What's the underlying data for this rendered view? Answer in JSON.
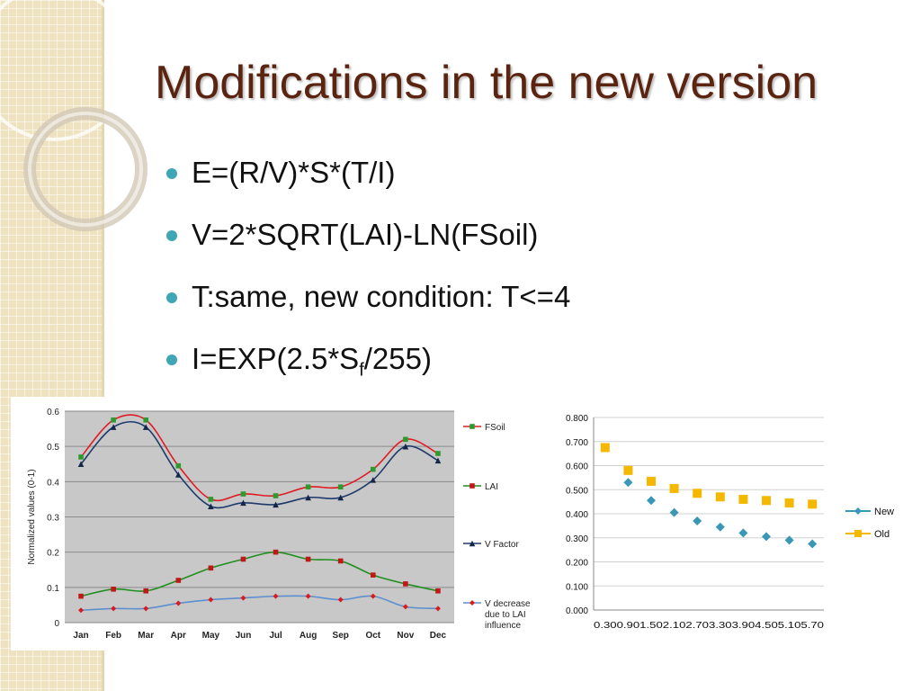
{
  "slide": {
    "title": "Modifications in the new version",
    "bullets": [
      {
        "text": "E=(R/V)*S*(T/I)"
      },
      {
        "text": "V=2*SQRT(LAI)-LN(FSoil)"
      },
      {
        "text": "T:same, new condition: T<=4"
      },
      {
        "text_before": "I=EXP(2.5*S",
        "subscript": "f",
        "text_after": "/255)"
      }
    ],
    "colors": {
      "title": "#5b2410",
      "bullet": "#3ea6b4",
      "sidebar": "#efe2c1"
    }
  },
  "chart_data": [
    {
      "type": "line",
      "categories": [
        "Jan",
        "Feb",
        "Mar",
        "Apr",
        "May",
        "Jun",
        "Jul",
        "Aug",
        "Sep",
        "Oct",
        "Nov",
        "Dec"
      ],
      "ylabel": "Normalized values (0-1)",
      "ylim": [
        0,
        0.6
      ],
      "yticks": [
        "0",
        "0.1",
        "0.2",
        "0.3",
        "0.4",
        "0.5",
        "0.6"
      ],
      "grid": true,
      "legend": "right",
      "series": [
        {
          "name": "FSoil",
          "color": "#e01b24",
          "marker": "square-green",
          "values": [
            0.47,
            0.575,
            0.575,
            0.445,
            0.35,
            0.365,
            0.36,
            0.385,
            0.385,
            0.435,
            0.52,
            0.48
          ]
        },
        {
          "name": "LAI",
          "color": "#1f8f1f",
          "marker": "square-red",
          "values": [
            0.075,
            0.095,
            0.09,
            0.12,
            0.155,
            0.18,
            0.2,
            0.18,
            0.175,
            0.135,
            0.11,
            0.09
          ]
        },
        {
          "name": "V Factor",
          "color": "#1d3a6b",
          "marker": "triangle",
          "values": [
            0.45,
            0.555,
            0.555,
            0.42,
            0.33,
            0.34,
            0.335,
            0.355,
            0.355,
            0.405,
            0.5,
            0.46
          ]
        },
        {
          "name": "V decrease due to LAI influence",
          "color": "#5b8fd0",
          "marker": "diamond-red",
          "values": [
            0.035,
            0.04,
            0.04,
            0.055,
            0.065,
            0.07,
            0.075,
            0.075,
            0.065,
            0.075,
            0.045,
            0.04
          ]
        }
      ]
    },
    {
      "type": "scatter",
      "x": [
        "0.30",
        "0.90",
        "1.50",
        "2.10",
        "2.70",
        "3.30",
        "3.90",
        "4.50",
        "5.10",
        "5.70"
      ],
      "ylim": [
        0,
        0.8
      ],
      "yticks": [
        "0.000",
        "0.100",
        "0.200",
        "0.300",
        "0.400",
        "0.500",
        "0.600",
        "0.700",
        "0.800"
      ],
      "grid": true,
      "legend": "right",
      "series": [
        {
          "name": "New",
          "color": "#3a97b5",
          "marker": "diamond",
          "values": [
            0.675,
            0.53,
            0.455,
            0.405,
            0.37,
            0.345,
            0.32,
            0.305,
            0.29,
            0.275
          ]
        },
        {
          "name": "Old",
          "color": "#f5b800",
          "marker": "square",
          "values": [
            0.675,
            0.58,
            0.535,
            0.505,
            0.485,
            0.47,
            0.46,
            0.455,
            0.445,
            0.44
          ]
        }
      ]
    }
  ]
}
